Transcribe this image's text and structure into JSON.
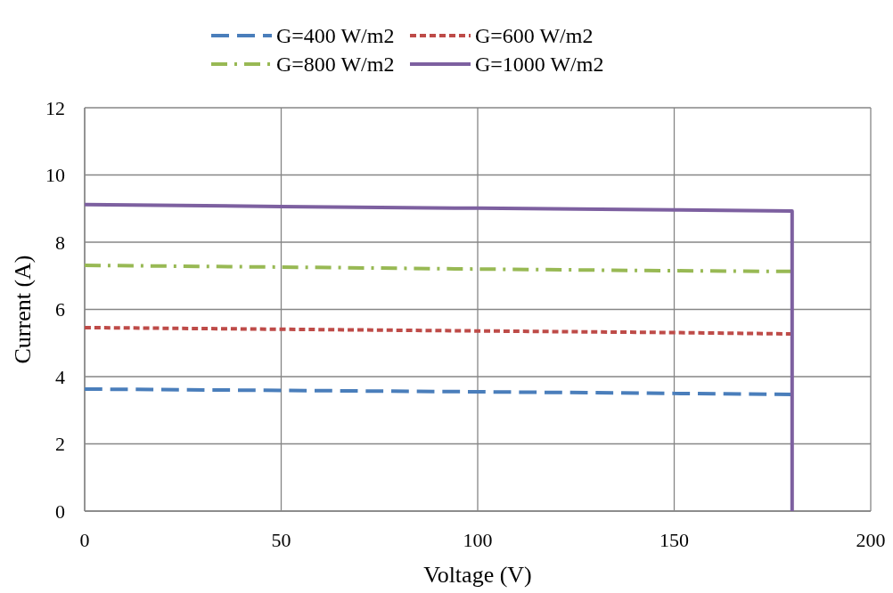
{
  "chart_data": {
    "type": "line",
    "xlabel": "Voltage (V)",
    "ylabel": "Current (A)",
    "xlim": [
      0,
      200
    ],
    "xticks": [
      0,
      50,
      100,
      150,
      200
    ],
    "ylim": [
      0,
      12
    ],
    "yticks": [
      0,
      2,
      4,
      6,
      8,
      10,
      12
    ],
    "grid": true,
    "legend": "top",
    "marker": "none",
    "series": [
      {
        "name": "G=400 W/m2",
        "color": "#4a7ebb",
        "line_style": "dashed",
        "x": [
          0,
          50,
          100,
          150,
          180
        ],
        "values": [
          3.63,
          3.59,
          3.55,
          3.5,
          3.47
        ]
      },
      {
        "name": "G=600 W/m2",
        "color": "#be4b48",
        "line_style": "dotted",
        "x": [
          0,
          50,
          100,
          150,
          180
        ],
        "values": [
          5.46,
          5.41,
          5.36,
          5.31,
          5.27
        ]
      },
      {
        "name": "G=800 W/m2",
        "color": "#98b954",
        "line_style": "dashdot",
        "x": [
          0,
          50,
          100,
          150,
          180
        ],
        "values": [
          7.31,
          7.26,
          7.2,
          7.15,
          7.13
        ]
      },
      {
        "name": "G=1000 W/m2",
        "color": "#7d60a0",
        "line_style": "solid",
        "x": [
          0,
          50,
          100,
          150,
          180,
          180
        ],
        "values": [
          9.12,
          9.06,
          9.01,
          8.96,
          8.93,
          0
        ]
      }
    ]
  }
}
